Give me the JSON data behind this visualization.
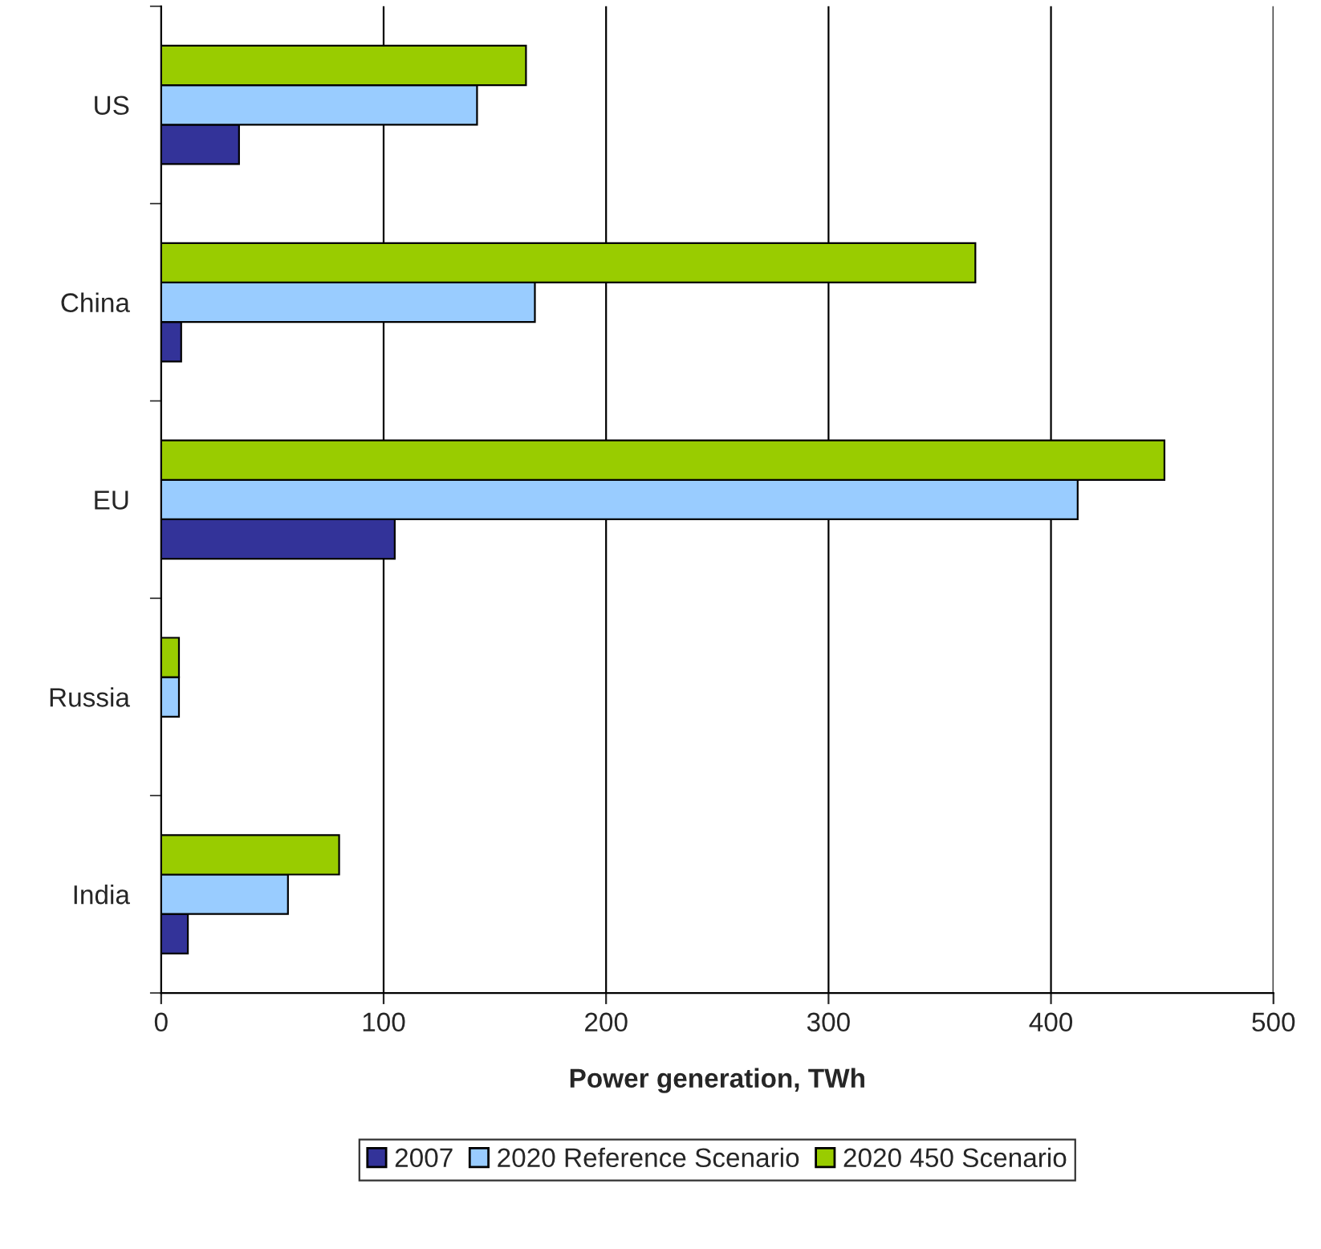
{
  "chart_data": {
    "type": "bar",
    "orientation": "horizontal",
    "categories": [
      "US",
      "China",
      "EU",
      "Russia",
      "India"
    ],
    "series": [
      {
        "name": "2007",
        "color": "#333399",
        "values": [
          35,
          9,
          105,
          null,
          12
        ]
      },
      {
        "name": "2020 Reference Scenario",
        "color": "#99ccff",
        "values": [
          142,
          168,
          412,
          8,
          57
        ]
      },
      {
        "name": "2020 450 Scenario",
        "color": "#99cc00",
        "values": [
          164,
          366,
          451,
          8,
          80
        ]
      }
    ],
    "xlabel": "Power generation, TWh",
    "xlim": [
      0,
      500
    ],
    "xticks": [
      0,
      100,
      200,
      300,
      400,
      500
    ],
    "grid": "x",
    "legend": "bottom"
  }
}
